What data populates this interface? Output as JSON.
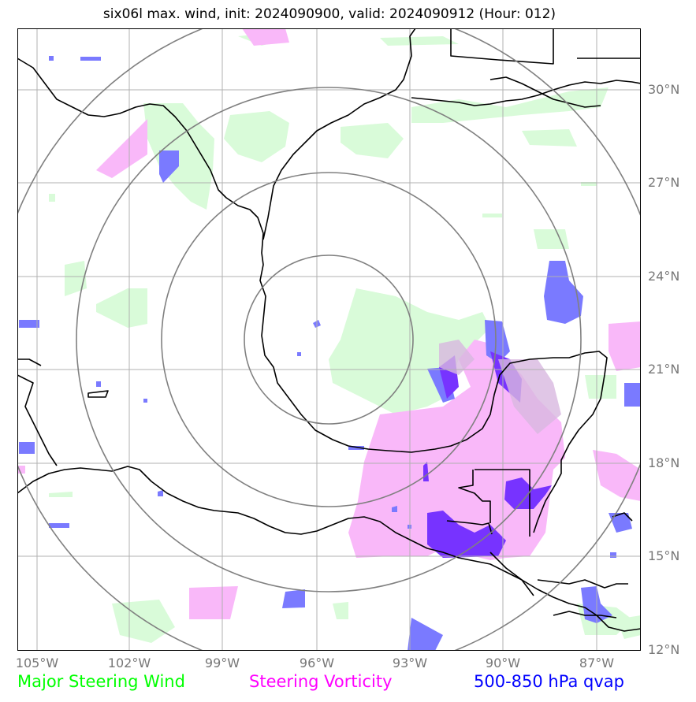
{
  "title": "six06l max. wind, init: 2024090900, valid: 2024090912 (Hour: 012)",
  "lat_labels": [
    "30°N",
    "27°N",
    "24°N",
    "21°N",
    "18°N",
    "15°N",
    "12°N"
  ],
  "lon_labels": [
    "105°W",
    "102°W",
    "99°W",
    "96°W",
    "93°W",
    "90°W",
    "87°W"
  ],
  "legend": [
    {
      "label": "Major Steering Wind",
      "color": "#00ff00"
    },
    {
      "label": "Steering Vorticity",
      "color": "#ff00ff"
    },
    {
      "label": "500-850 hPa qvap",
      "color": "#0000ff"
    }
  ],
  "colors": {
    "wind_fill": "#d9fbd9",
    "vorticity_fill": "#f9b8f9",
    "qvap_fill": "#7a7aff",
    "qvap_dark": "#7733ff",
    "grid": "#b0b0b0",
    "rings": "#808080",
    "coast": "#000000"
  }
}
